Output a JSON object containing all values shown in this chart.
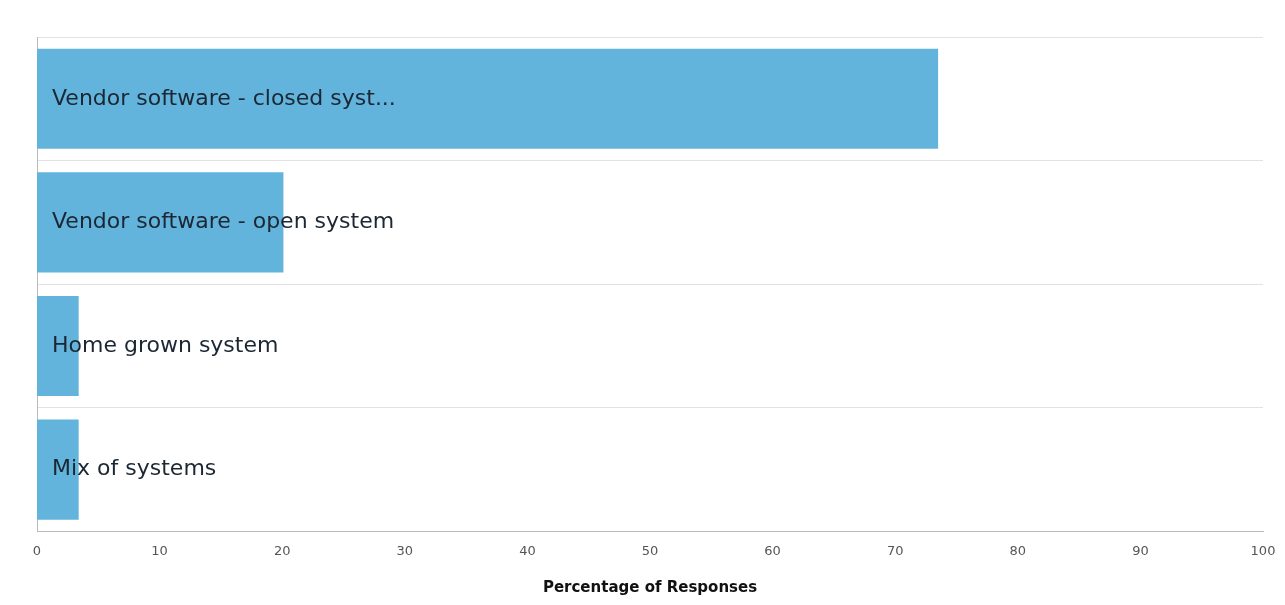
{
  "chart_data": {
    "type": "bar",
    "orientation": "horizontal",
    "xlabel": "Percentage of Responses",
    "categories": [
      "Vendor software - closed syst...",
      "Vendor software - open system",
      "Home grown system",
      "Mix of systems"
    ],
    "values": [
      73.5,
      20.1,
      3.4,
      3.4
    ],
    "color": "#63b4dd",
    "xlim": [
      0,
      100
    ],
    "xticks": [
      0,
      10,
      20,
      30,
      40,
      50,
      60,
      70,
      80,
      90,
      100
    ],
    "grid": "y"
  }
}
